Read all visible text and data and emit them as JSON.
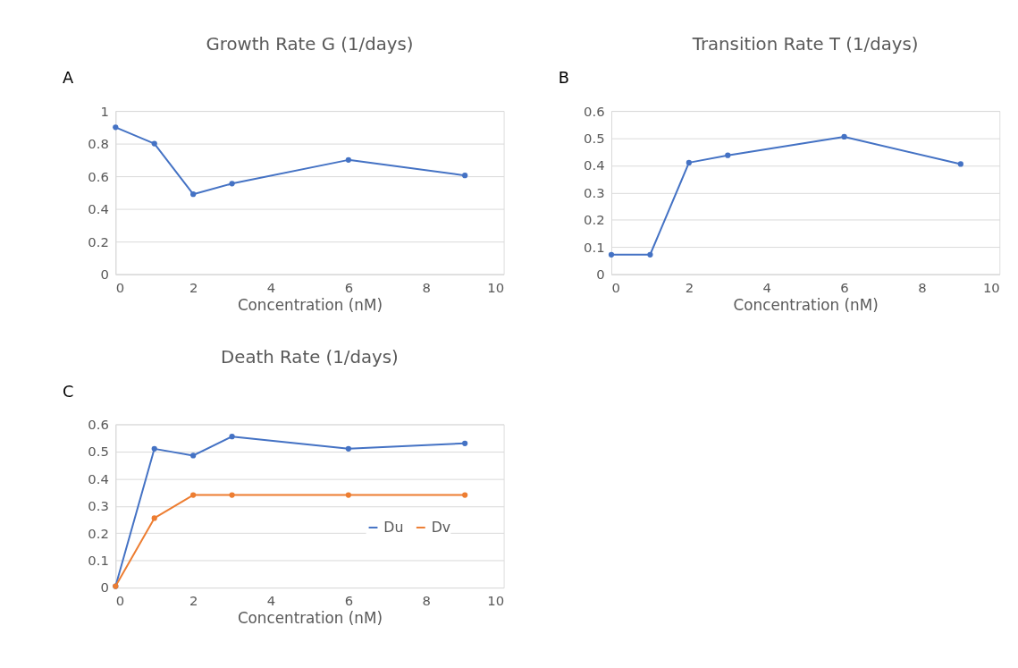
{
  "chart_data": [
    {
      "type": "line",
      "title": "Growth Rate G (1/days)",
      "xlabel": "Concentration (nM)",
      "annotations": [
        "A"
      ],
      "x": [
        0,
        1,
        2,
        3,
        6,
        9
      ],
      "series": [
        {
          "color": "#4472c4",
          "values": [
            0.9,
            0.8,
            0.49,
            0.555,
            0.7,
            0.605
          ]
        }
      ],
      "xlim": [
        0,
        10
      ],
      "xticks": [
        0,
        2,
        4,
        6,
        8,
        10
      ],
      "ylim": [
        0,
        1
      ],
      "yticks": [
        0,
        0.2,
        0.4,
        0.6,
        0.8,
        1
      ],
      "grid": "y",
      "marker": "circle",
      "line_style": "solid"
    },
    {
      "type": "line",
      "title": "Transition Rate T (1/days)",
      "xlabel": "Concentration (nM)",
      "annotations": [
        "B"
      ],
      "x": [
        0,
        1,
        2,
        3,
        6,
        9
      ],
      "series": [
        {
          "color": "#4472c4",
          "values": [
            0.072,
            0.072,
            0.41,
            0.437,
            0.505,
            0.405
          ]
        }
      ],
      "xlim": [
        0,
        10
      ],
      "xticks": [
        0,
        2,
        4,
        6,
        8,
        10
      ],
      "ylim": [
        0,
        0.6
      ],
      "yticks": [
        0,
        0.1,
        0.2,
        0.3,
        0.4,
        0.5,
        0.6
      ],
      "grid": "y",
      "marker": "circle",
      "line_style": "solid"
    },
    {
      "type": "line",
      "title": "Death Rate (1/days)",
      "xlabel": "Concentration (nM)",
      "annotations": [
        "C"
      ],
      "x": [
        0,
        1,
        2,
        3,
        6,
        9
      ],
      "series": [
        {
          "name": "Du",
          "color": "#4472c4",
          "values": [
            0.005,
            0.51,
            0.485,
            0.555,
            0.51,
            0.53
          ]
        },
        {
          "name": "Dv",
          "color": "#ed7d31",
          "values": [
            0.005,
            0.255,
            0.34,
            0.34,
            0.34,
            0.34
          ]
        }
      ],
      "xlim": [
        0,
        10
      ],
      "xticks": [
        0,
        2,
        4,
        6,
        8,
        10
      ],
      "ylim": [
        0,
        0.6
      ],
      "yticks": [
        0,
        0.1,
        0.2,
        0.3,
        0.4,
        0.5,
        0.6
      ],
      "grid": "y",
      "marker": "circle",
      "line_style": "solid",
      "legend": "bottom right"
    }
  ]
}
